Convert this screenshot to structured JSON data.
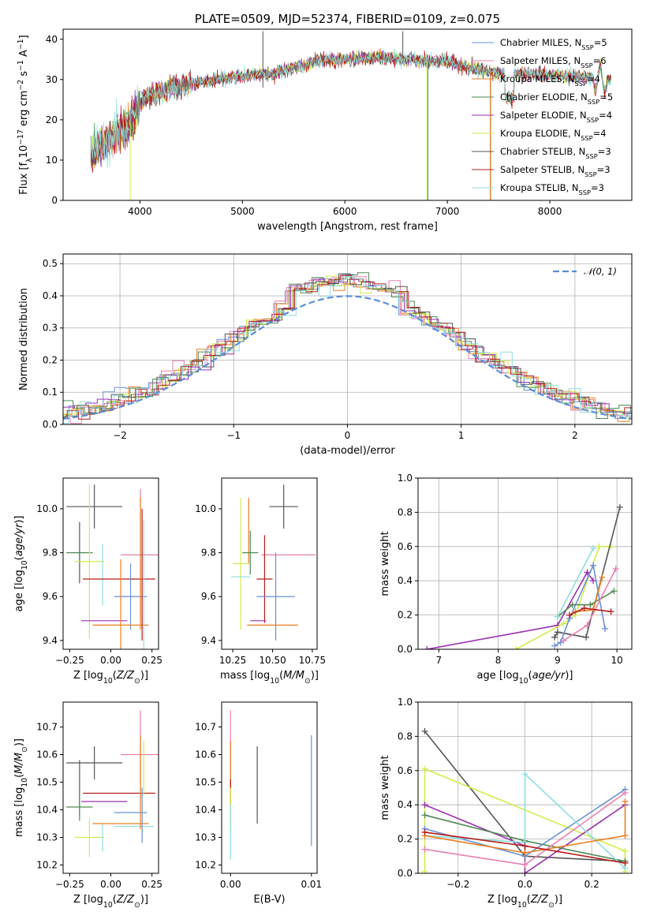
{
  "colors": {
    "chabrier_miles": "#6a8fd8",
    "salpeter_miles": "#e87fb0",
    "kroupa_miles": "#e88020",
    "chabrier_elodie": "#4f8a55",
    "salpeter_elodie": "#9a2fb0",
    "kroupa_elodie": "#d4ec4c",
    "chabrier_stelib": "#555555",
    "salpeter_stelib": "#b71c1c",
    "kroupa_stelib": "#8fdedc",
    "normal": "#5b8ed6"
  },
  "chart_data": [
    {
      "id": "spectrum",
      "type": "line",
      "title": "PLATE=0509, MJD=52374, FIBERID=0109, z=0.075",
      "xlabel": "wavelength [Angstrom, rest frame]",
      "ylabel": "Flux [f_λ10^-17 erg cm^-2 s^-1 A^-1]",
      "xlim": [
        3250,
        8800
      ],
      "ylim": [
        0,
        42.5
      ],
      "xticks": [
        "4000",
        "5000",
        "6000",
        "7000",
        "8000"
      ],
      "yticks": [
        "0",
        "10",
        "20",
        "30",
        "40"
      ],
      "grid": false,
      "legend_position": "top-right",
      "legend": [
        {
          "name": "Chabrier MILES, N_SSP=5",
          "text": "Chabrier MILES, N",
          "sub": "SSP",
          "tail": "=5",
          "color_key": "chabrier_miles"
        },
        {
          "name": "Salpeter MILES, N_SSP=6",
          "text": "Salpeter MILES, N",
          "sub": "SSP",
          "tail": "=6",
          "color_key": "salpeter_miles"
        },
        {
          "name": "Kroupa MILES, N_SSP=4",
          "text": "Kroupa MILES, N",
          "sub": "SSP",
          "tail": "=4",
          "color_key": "kroupa_miles"
        },
        {
          "name": "Chabrier ELODIE, N_SSP=5",
          "text": "Chabrier ELODIE, N",
          "sub": "SSP",
          "tail": "=5",
          "color_key": "chabrier_elodie"
        },
        {
          "name": "Salpeter ELODIE, N_SSP=4",
          "text": "Salpeter ELODIE, N",
          "sub": "SSP",
          "tail": "=4",
          "color_key": "salpeter_elodie"
        },
        {
          "name": "Kroupa ELODIE, N_SSP=4",
          "text": "Kroupa ELODIE, N",
          "sub": "SSP",
          "tail": "=4",
          "color_key": "kroupa_elodie"
        },
        {
          "name": "Chabrier STELIB, N_SSP=3",
          "text": "Chabrier STELIB, N",
          "sub": "SSP",
          "tail": "=3",
          "color_key": "chabrier_stelib"
        },
        {
          "name": "Salpeter STELIB, N_SSP=3",
          "text": "Salpeter STELIB, N",
          "sub": "SSP",
          "tail": "=3",
          "color_key": "salpeter_stelib"
        },
        {
          "name": "Kroupa STELIB, N_SSP=3",
          "text": "Kroupa STELIB, N",
          "sub": "SSP",
          "tail": "=3",
          "color_key": "kroupa_stelib"
        }
      ],
      "spectrum_continuum": [
        [
          3520,
          12
        ],
        [
          3700,
          15
        ],
        [
          3900,
          19
        ],
        [
          4000,
          25
        ],
        [
          4300,
          28
        ],
        [
          4600,
          29.5
        ],
        [
          5000,
          31
        ],
        [
          5300,
          31.5
        ],
        [
          5500,
          33
        ],
        [
          5800,
          35
        ],
        [
          6000,
          35
        ],
        [
          6400,
          35.5
        ],
        [
          6800,
          34.5
        ],
        [
          7000,
          34.5
        ],
        [
          7200,
          33
        ],
        [
          7500,
          31.5
        ],
        [
          7800,
          31.5
        ],
        [
          8100,
          31
        ],
        [
          8400,
          30.5
        ],
        [
          8600,
          30
        ]
      ]
    },
    {
      "id": "residuals",
      "type": "histogram",
      "xlabel": "(data-model)/error",
      "ylabel": "Normed distribution",
      "xlim": [
        -2.5,
        2.5
      ],
      "ylim": [
        0,
        0.53
      ],
      "xticks": [
        "−2",
        "−1",
        "0",
        "1",
        "2"
      ],
      "yticks": [
        "0.0",
        "0.1",
        "0.2",
        "0.3",
        "0.4",
        "0.5"
      ],
      "grid": true,
      "bin_width": 0.1,
      "legend_position": "top-right",
      "reference": {
        "name": "𝒩(0, 1)",
        "mean": 0,
        "std": 1
      }
    },
    {
      "id": "age_vs_Z",
      "type": "errorbar",
      "xlabel": "Z [log10(Z/Z⊙)]",
      "ylabel": "age [log10(age/yr)]",
      "xlim": [
        -0.29,
        0.29
      ],
      "ylim": [
        9.36,
        10.14
      ],
      "xticks": [
        "−0.25",
        "0.00",
        "0.25"
      ],
      "yticks": [
        "9.4",
        "9.6",
        "9.8",
        "10.0"
      ],
      "grid": false,
      "points": [
        {
          "c": "chabrier_stelib",
          "x": -0.1,
          "xerr": 0.17,
          "y": 10.01,
          "yerr": 0.1
        },
        {
          "c": "chabrier_stelib",
          "x": -0.19,
          "y": 9.8,
          "yerr": 0.14
        },
        {
          "c": "chabrier_elodie",
          "x": -0.19,
          "xerr": 0.08,
          "y": 9.8
        },
        {
          "c": "kroupa_elodie",
          "x": -0.13,
          "xerr": 0.09,
          "y": 9.76,
          "yerr": 0.35
        },
        {
          "c": "kroupa_stelib",
          "x": -0.05,
          "y": 9.7,
          "yerr": 0.14
        },
        {
          "c": "salpeter_stelib",
          "x": 0.05,
          "xerr": 0.22,
          "y": 9.68
        },
        {
          "c": "chabrier_miles",
          "x": 0.12,
          "xerr": 0.1,
          "y": 9.6,
          "yerr": 0.15
        },
        {
          "c": "salpeter_elodie",
          "x": -0.04,
          "xerr": 0.14,
          "y": 9.49
        },
        {
          "c": "kroupa_miles",
          "x": 0.06,
          "xerr": 0.17,
          "y": 9.47,
          "yerr": 0.3
        },
        {
          "c": "salpeter_miles",
          "x": 0.18,
          "xerr": 0.12,
          "y": 9.79,
          "yerr": 0.3
        },
        {
          "c": "kroupa_miles",
          "x": 0.18,
          "y": 9.75,
          "yerr": 0.3
        },
        {
          "c": "salpeter_stelib",
          "x": 0.19,
          "y": 9.7,
          "yerr": 0.3
        },
        {
          "c": "kroupa_stelib",
          "x": 0.2,
          "y": 9.65,
          "yerr": 0.3
        }
      ]
    },
    {
      "id": "age_vs_mass",
      "type": "errorbar",
      "xlabel": "mass [log10(M/M⊙)]",
      "ylabel": "",
      "xlim": [
        10.18,
        10.78
      ],
      "ylim": [
        9.36,
        10.14
      ],
      "xticks": [
        "10.25",
        "10.50",
        "10.75"
      ],
      "yticks": [
        "9.4",
        "9.6",
        "9.8",
        "10.0"
      ],
      "grid": false,
      "points": [
        {
          "c": "chabrier_stelib",
          "x": 10.57,
          "xerr": 0.09,
          "y": 10.01,
          "yerr": 0.1
        },
        {
          "c": "kroupa_miles",
          "x": 10.35,
          "y": 9.9,
          "yerr": 0.15
        },
        {
          "c": "chabrier_elodie",
          "x": 10.36,
          "xerr": 0.05,
          "y": 9.8,
          "yerr": 0.1
        },
        {
          "c": "salpeter_miles",
          "x": 10.6,
          "xerr": 0.17,
          "y": 9.79
        },
        {
          "c": "kroupa_elodie",
          "x": 10.3,
          "xerr": 0.05,
          "y": 9.75,
          "yerr": 0.3
        },
        {
          "c": "kroupa_stelib",
          "x": 10.3,
          "xerr": 0.06,
          "y": 9.69
        },
        {
          "c": "salpeter_stelib",
          "x": 10.45,
          "xerr": 0.05,
          "y": 9.68,
          "yerr": 0.2
        },
        {
          "c": "chabrier_miles",
          "x": 10.52,
          "xerr": 0.12,
          "y": 9.6,
          "yerr": 0.2
        },
        {
          "c": "salpeter_elodie",
          "x": 10.41,
          "xerr": 0.05,
          "y": 9.49
        },
        {
          "c": "kroupa_miles",
          "x": 10.5,
          "xerr": 0.16,
          "y": 9.47
        }
      ]
    },
    {
      "id": "weight_vs_age",
      "type": "line",
      "xlabel": "age [log10(age/yr)]",
      "ylabel": "mass weight",
      "xlim": [
        6.65,
        10.25
      ],
      "ylim": [
        0,
        1.0
      ],
      "xticks": [
        "7",
        "8",
        "9",
        "10"
      ],
      "yticks": [
        "0.0",
        "0.2",
        "0.4",
        "0.6",
        "0.8",
        "1.0"
      ],
      "grid": true,
      "series": [
        {
          "c": "salpeter_elodie",
          "x": [
            6.8,
            9.0,
            9.5,
            9.6
          ],
          "y": [
            0.0,
            0.14,
            0.45,
            0.4
          ]
        },
        {
          "c": "kroupa_elodie",
          "x": [
            8.3,
            9.1,
            9.3,
            9.7,
            9.9
          ],
          "y": [
            0.0,
            0.15,
            0.2,
            0.6,
            0.6
          ]
        },
        {
          "c": "chabrier_stelib",
          "x": [
            8.95,
            9.0,
            9.48,
            10.05
          ],
          "y": [
            0.07,
            0.1,
            0.07,
            0.83
          ]
        },
        {
          "c": "chabrier_miles",
          "x": [
            8.95,
            9.05,
            9.2,
            9.6,
            9.8
          ],
          "y": [
            0.02,
            0.04,
            0.18,
            0.49,
            0.12
          ]
        },
        {
          "c": "chabrier_elodie",
          "x": [
            9.0,
            9.25,
            9.55,
            9.95
          ],
          "y": [
            0.19,
            0.26,
            0.26,
            0.34
          ]
        },
        {
          "c": "kroupa_stelib",
          "x": [
            9.0,
            9.6
          ],
          "y": [
            0.19,
            0.59
          ]
        },
        {
          "c": "salpeter_miles",
          "x": [
            9.1,
            9.5,
            9.98
          ],
          "y": [
            0.05,
            0.14,
            0.47
          ]
        },
        {
          "c": "kroupa_miles",
          "x": [
            9.3,
            9.6,
            9.75
          ],
          "y": [
            0.22,
            0.23,
            0.42
          ]
        },
        {
          "c": "salpeter_stelib",
          "x": [
            9.2,
            9.45,
            9.9
          ],
          "y": [
            0.2,
            0.24,
            0.22
          ]
        }
      ]
    },
    {
      "id": "mass_vs_Z",
      "type": "errorbar",
      "xlabel": "Z [log10(Z/Z⊙)]",
      "ylabel": "mass [log10(M/M⊙)]",
      "xlim": [
        -0.29,
        0.29
      ],
      "ylim": [
        10.17,
        10.79
      ],
      "xticks": [
        "−0.25",
        "0.00",
        "0.25"
      ],
      "yticks": [
        "10.2",
        "10.3",
        "10.4",
        "10.5",
        "10.6",
        "10.7"
      ],
      "grid": false,
      "points": [
        {
          "c": "chabrier_stelib",
          "x": -0.1,
          "xerr": 0.17,
          "y": 10.57,
          "yerr": 0.06
        },
        {
          "c": "chabrier_stelib",
          "x": -0.19,
          "y": 10.48,
          "yerr": 0.1
        },
        {
          "c": "chabrier_elodie",
          "x": -0.19,
          "xerr": 0.08,
          "y": 10.41,
          "yerr": 0.05
        },
        {
          "c": "salpeter_elodie",
          "x": -0.04,
          "xerr": 0.14,
          "y": 10.43
        },
        {
          "c": "salpeter_stelib",
          "x": 0.05,
          "xerr": 0.22,
          "y": 10.46
        },
        {
          "c": "kroupa_elodie",
          "x": -0.13,
          "xerr": 0.09,
          "y": 10.3,
          "yerr": 0.07
        },
        {
          "c": "chabrier_miles",
          "x": 0.12,
          "xerr": 0.1,
          "y": 10.39
        },
        {
          "c": "kroupa_stelib",
          "x": -0.05,
          "y": 10.3,
          "yerr": 0.05
        },
        {
          "c": "kroupa_miles",
          "x": 0.06,
          "xerr": 0.17,
          "y": 10.35
        },
        {
          "c": "kroupa_stelib",
          "x": 0.14,
          "xerr": 0.12,
          "y": 10.34
        },
        {
          "c": "salpeter_miles",
          "x": 0.18,
          "xerr": 0.12,
          "y": 10.6,
          "yerr": 0.16
        },
        {
          "c": "kroupa_miles",
          "x": 0.18,
          "y": 10.5,
          "yerr": 0.17
        },
        {
          "c": "chabrier_miles",
          "x": 0.19,
          "y": 10.38,
          "yerr": 0.1
        },
        {
          "c": "kroupa_elodie",
          "x": 0.2,
          "y": 10.55,
          "yerr": 0.1
        }
      ]
    },
    {
      "id": "mass_vs_ebv",
      "type": "errorbar",
      "xlabel": "E(B-V)",
      "ylabel": "",
      "xlim": [
        -0.0011,
        0.0107
      ],
      "ylim": [
        10.17,
        10.79
      ],
      "xticks": [
        "0.00",
        "0.01"
      ],
      "yticks": [
        "10.2",
        "10.3",
        "10.4",
        "10.5",
        "10.6",
        "10.7"
      ],
      "grid": false,
      "points": [
        {
          "c": "salpeter_miles",
          "x": 0.0,
          "y": 10.55,
          "yerr": 0.21
        },
        {
          "c": "kroupa_miles",
          "x": 0.0,
          "y": 10.5,
          "yerr": 0.15
        },
        {
          "c": "salpeter_stelib",
          "x": 0.0,
          "y": 10.46,
          "yerr": 0.05
        },
        {
          "c": "kroupa_elodie",
          "x": 0.0,
          "y": 10.4,
          "yerr": 0.08
        },
        {
          "c": "kroupa_stelib",
          "x": 0.0,
          "y": 10.32,
          "yerr": 0.1
        },
        {
          "c": "chabrier_stelib",
          "x": 0.0033,
          "y": 10.49,
          "yerr": 0.14
        },
        {
          "c": "chabrier_miles",
          "x": 0.01,
          "y": 10.47,
          "yerr": 0.2
        }
      ]
    },
    {
      "id": "weight_vs_Z",
      "type": "line",
      "xlabel": "Z [log10(Z/Z⊙)]",
      "ylabel": "mass weight",
      "xlim": [
        -0.32,
        0.32
      ],
      "ylim": [
        0,
        1.0
      ],
      "xticks": [
        "−0.2",
        "0.0",
        "0.2"
      ],
      "yticks": [
        "0.0",
        "0.2",
        "0.4",
        "0.6",
        "0.8",
        "1.0"
      ],
      "grid": true,
      "series": [
        {
          "c": "chabrier_stelib",
          "x": [
            -0.3,
            0.0,
            0.3
          ],
          "y": [
            0.83,
            0.1,
            0.07
          ]
        },
        {
          "c": "kroupa_elodie",
          "x": [
            -0.3,
            -0.3,
            0.3,
            0.3
          ],
          "y": [
            0.01,
            0.61,
            0.13,
            0.01
          ]
        },
        {
          "c": "salpeter_elodie",
          "x": [
            -0.3,
            0.0,
            0.0,
            0.3
          ],
          "y": [
            0.4,
            0.16,
            0.0,
            0.4
          ]
        },
        {
          "c": "chabrier_elodie",
          "x": [
            -0.3,
            0.0,
            0.3
          ],
          "y": [
            0.34,
            0.19,
            0.07
          ]
        },
        {
          "c": "chabrier_miles",
          "x": [
            -0.3,
            0.0,
            0.3
          ],
          "y": [
            0.26,
            0.1,
            0.49
          ]
        },
        {
          "c": "kroupa_stelib",
          "x": [
            -0.3,
            0.0,
            0.0,
            0.3
          ],
          "y": [
            0.22,
            0.18,
            0.58,
            0.03
          ]
        },
        {
          "c": "kroupa_miles",
          "x": [
            -0.3,
            0.0,
            0.3,
            0.3
          ],
          "y": [
            0.22,
            0.12,
            0.22,
            0.42
          ]
        },
        {
          "c": "salpeter_miles",
          "x": [
            -0.3,
            0.0,
            0.3
          ],
          "y": [
            0.14,
            0.05,
            0.47
          ]
        },
        {
          "c": "salpeter_stelib",
          "x": [
            -0.3,
            0.0,
            0.3
          ],
          "y": [
            0.24,
            0.16,
            0.06
          ]
        }
      ]
    }
  ]
}
